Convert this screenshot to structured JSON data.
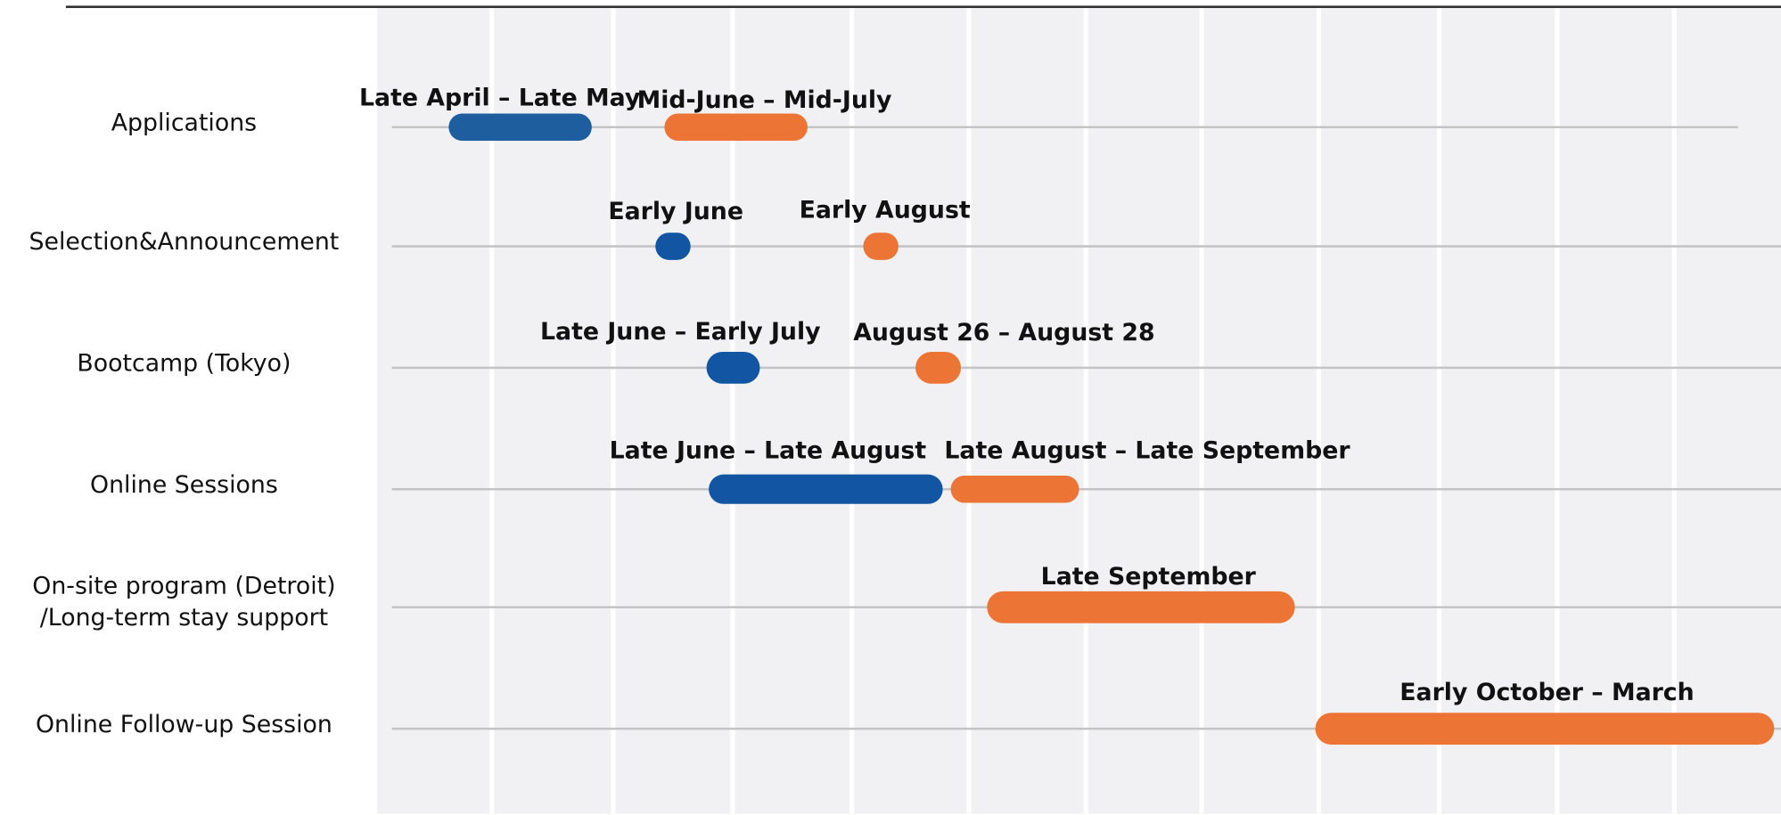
{
  "rows": [
    {
      "label": [
        "Applications"
      ],
      "bars": [
        {
          "label": "Late April – Late May",
          "color": "#1f5e9e"
        },
        {
          "label": "Mid-June – Mid-July",
          "color": "#ec7434"
        }
      ]
    },
    {
      "label": [
        "Selection&Announcement"
      ],
      "bars": [
        {
          "label": "Early June",
          "color": "#1255a2"
        },
        {
          "label": "Early August",
          "color": "#ec7434"
        }
      ]
    },
    {
      "label": [
        "Bootcamp (Tokyo)"
      ],
      "bars": [
        {
          "label": "Late June – Early July",
          "color": "#1255a2"
        },
        {
          "label": "August 26 – August 28",
          "color": "#ec7434"
        }
      ]
    },
    {
      "label": [
        "Online Sessions"
      ],
      "bars": [
        {
          "label": "Late June – Late August",
          "color": "#1255a2"
        },
        {
          "label": "Late August – Late September",
          "color": "#ec7434"
        }
      ]
    },
    {
      "label": [
        "On-site program (Detroit)",
        "/Long-term stay support"
      ],
      "bars": [
        {
          "label": "Late September",
          "color": "#ec7434"
        }
      ]
    },
    {
      "label": [
        "Online Follow-up Session"
      ],
      "bars": [
        {
          "label": "Early October – March",
          "color": "#ec7434"
        }
      ]
    }
  ]
}
